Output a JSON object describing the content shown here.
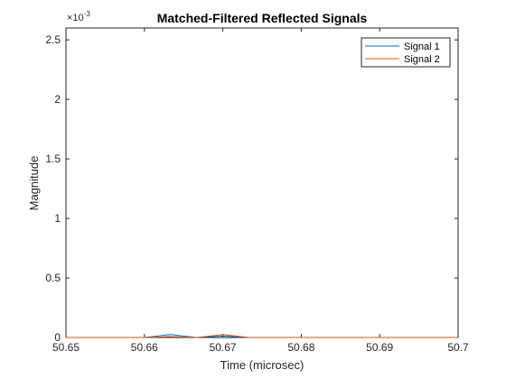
{
  "chart_data": {
    "type": "line",
    "title": "Matched-Filtered Reflected Signals",
    "xlabel": "Time (microsec)",
    "ylabel": "Magnitude",
    "xlim": [
      50.65,
      50.7
    ],
    "ylim": [
      0,
      0.0026
    ],
    "y_exponent_label": "×10",
    "y_exponent_power": "-3",
    "x_ticks": [
      50.65,
      50.66,
      50.67,
      50.68,
      50.69,
      50.7
    ],
    "x_tick_labels": [
      "50.65",
      "50.66",
      "50.67",
      "50.68",
      "50.69",
      "50.7"
    ],
    "y_ticks": [
      0,
      0.0005,
      0.001,
      0.0015,
      0.002,
      0.0025
    ],
    "y_tick_labels": [
      "0",
      "0.5",
      "1",
      "1.5",
      "2",
      "2.5"
    ],
    "grid": false,
    "legend_position": "top-right",
    "series": [
      {
        "name": "Signal 1",
        "color": "#0072BD",
        "x": [
          50.65,
          50.6533,
          50.6567,
          50.66,
          50.6633,
          50.6667,
          50.67,
          50.6733,
          50.6767,
          50.68,
          50.6833,
          50.6867,
          50.69,
          50.6933,
          50.6967,
          50.7
        ],
        "y": [
          0,
          0,
          0,
          0,
          2.5e-05,
          0,
          1.2e-05,
          0,
          0,
          0,
          0,
          0,
          0,
          0,
          0,
          0
        ]
      },
      {
        "name": "Signal 2",
        "color": "#D95319",
        "x": [
          50.65,
          50.6533,
          50.6567,
          50.66,
          50.6633,
          50.6667,
          50.67,
          50.6733,
          50.6767,
          50.68,
          50.6833,
          50.6867,
          50.69,
          50.6933,
          50.6967,
          50.7
        ],
        "y": [
          0,
          0,
          0,
          0,
          8e-06,
          0,
          2.5e-05,
          0,
          0,
          0,
          0,
          0,
          0,
          0,
          0,
          0
        ]
      }
    ]
  }
}
